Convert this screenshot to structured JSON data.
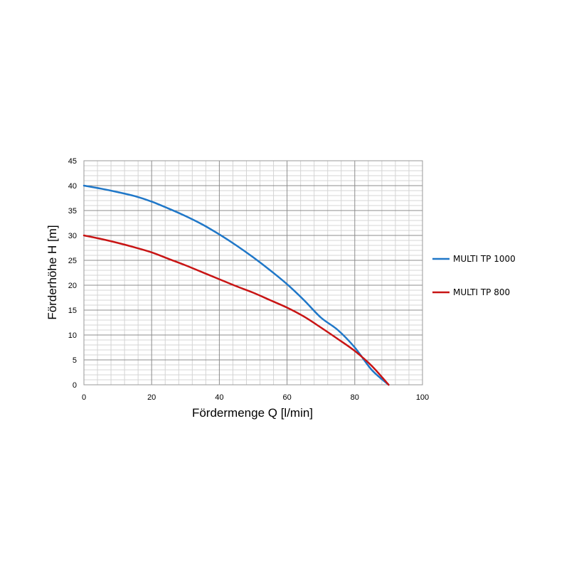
{
  "chart_data": {
    "type": "line",
    "xlabel": "Fördermenge Q [l/min]",
    "ylabel": "Förderhöhe H [m]",
    "xlim": [
      0,
      100
    ],
    "ylim": [
      0,
      45
    ],
    "x_ticks": [
      "0",
      "20",
      "40",
      "60",
      "80",
      "100"
    ],
    "y_ticks": [
      "0",
      "5",
      "10",
      "15",
      "20",
      "25",
      "30",
      "35",
      "40",
      "45"
    ],
    "grid": true,
    "legend_position": "right",
    "series": [
      {
        "name": "MULTI TP 1000",
        "color": "#1f77c8",
        "x": [
          0,
          5,
          10,
          15,
          20,
          25,
          30,
          35,
          40,
          45,
          50,
          55,
          60,
          65,
          70,
          75,
          80,
          85,
          90
        ],
        "y": [
          40,
          39.4,
          38.7,
          37.9,
          36.8,
          35.4,
          33.9,
          32.2,
          30.2,
          28,
          25.6,
          23,
          20.2,
          17,
          13.5,
          11,
          7.5,
          3,
          0
        ]
      },
      {
        "name": "MULTI TP 800",
        "color": "#c81414",
        "x": [
          0,
          5,
          10,
          15,
          20,
          25,
          30,
          35,
          40,
          45,
          50,
          55,
          60,
          65,
          70,
          75,
          80,
          85,
          90
        ],
        "y": [
          30,
          29.3,
          28.5,
          27.6,
          26.6,
          25.3,
          24,
          22.6,
          21.2,
          19.8,
          18.5,
          17,
          15.5,
          13.7,
          11.5,
          9.2,
          6.8,
          3.8,
          0
        ]
      }
    ]
  }
}
